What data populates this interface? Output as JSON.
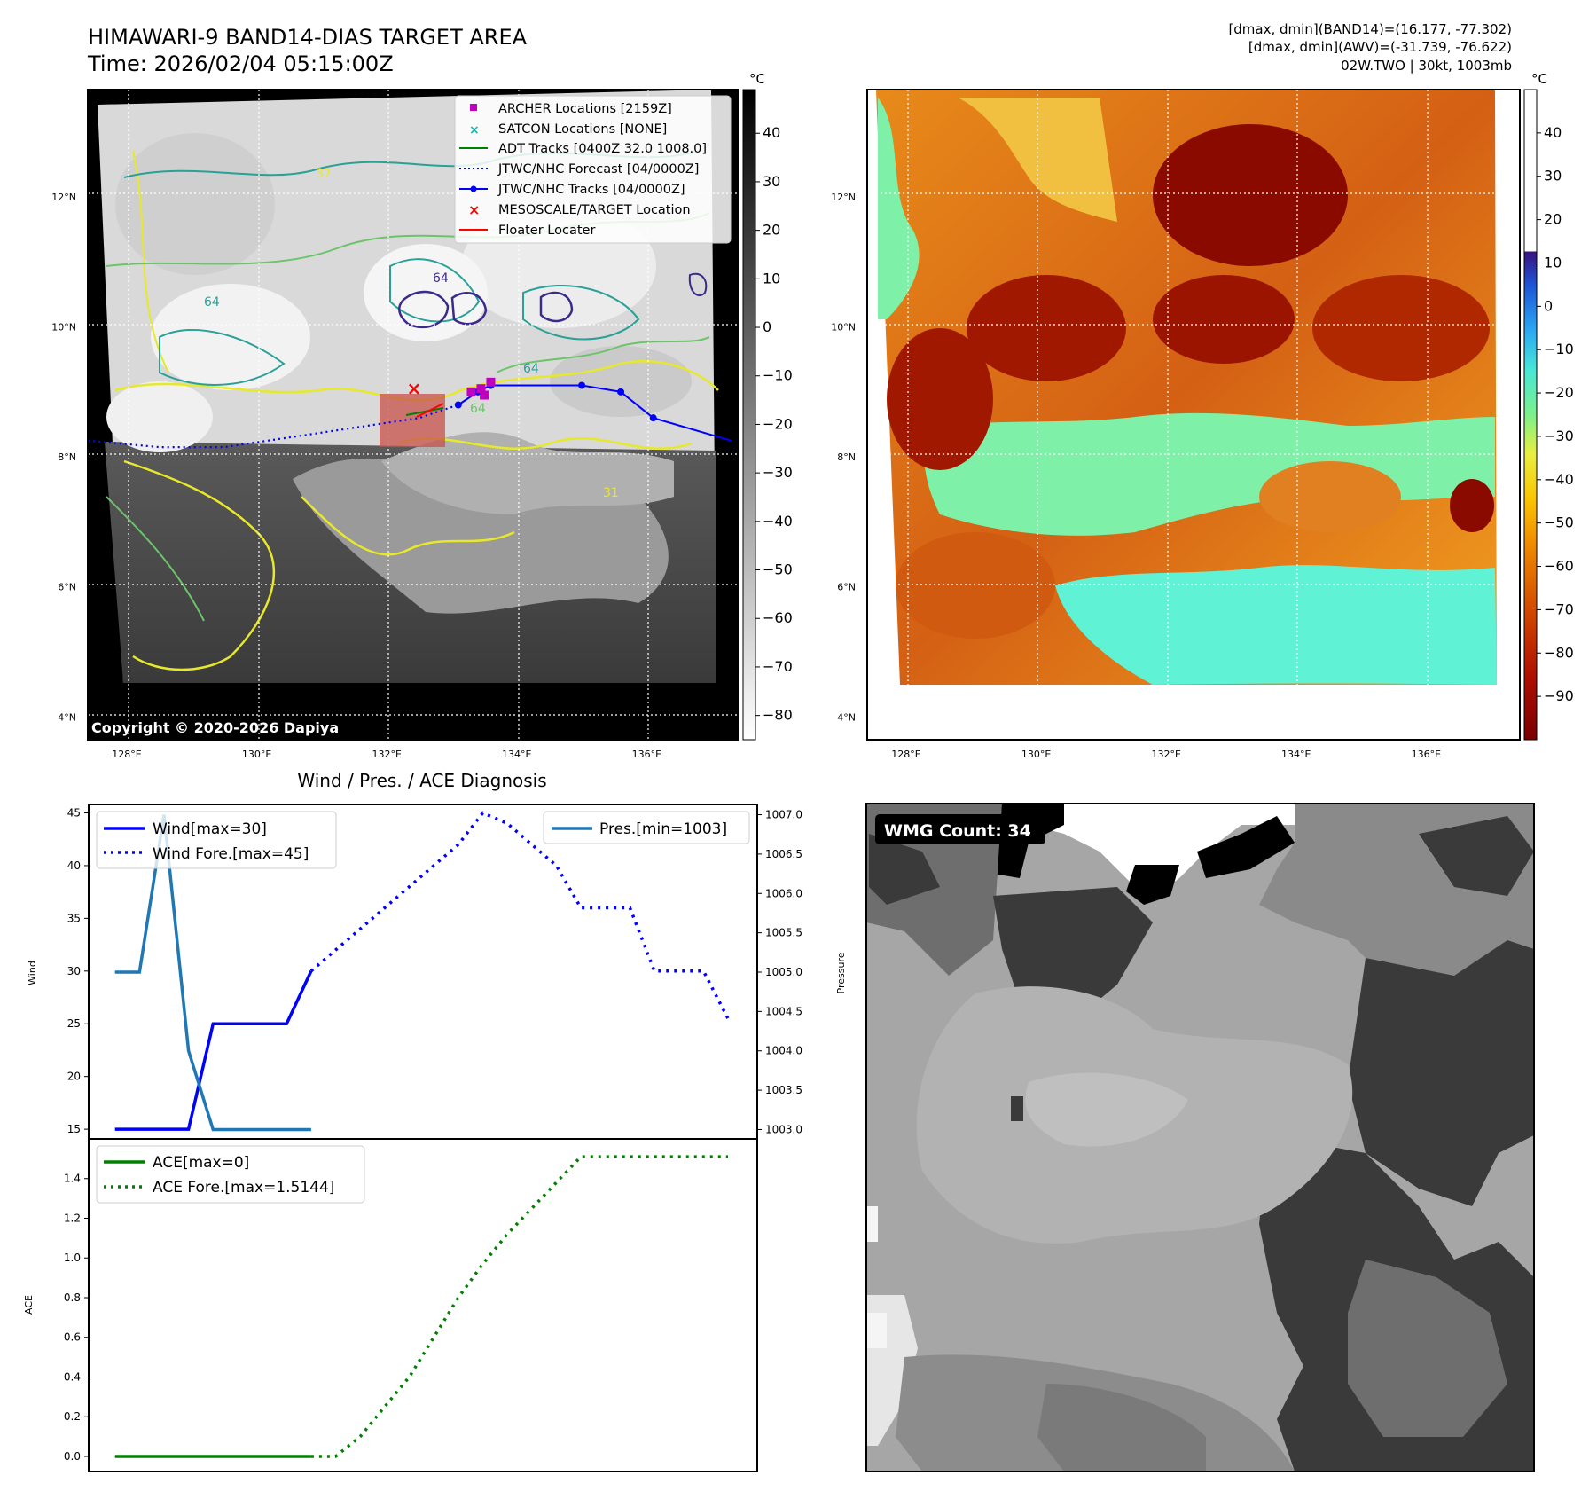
{
  "header": {
    "title_line1": "HIMAWARI-9 BAND14-DIAS TARGET AREA",
    "title_line2": "Time: 2026/02/04 05:15:00Z",
    "info_line1": "[dmax, dmin](BAND14)=(16.177, -77.302)",
    "info_line2": "[dmax, dmin](AWV)=(-31.739, -76.622)",
    "info_line3": "02W.TWO | 30kt, 1003mb"
  },
  "map_common": {
    "lat_labels": [
      "12°N",
      "10°N",
      "8°N",
      "6°N",
      "4°N"
    ],
    "lon_labels": [
      "128°E",
      "130°E",
      "132°E",
      "134°E",
      "136°E"
    ],
    "unit": "°C"
  },
  "ir_map": {
    "copyright": "Copyright © 2020-2026 Dapiya",
    "contour_labels": [
      "64",
      "64",
      "37",
      "64",
      "64",
      "31"
    ],
    "colorbar": {
      "ticks": [
        "40",
        "30",
        "20",
        "10",
        "0",
        "−10",
        "−20",
        "−30",
        "−40",
        "−50",
        "−60",
        "−70",
        "−80"
      ],
      "max": 49,
      "min": -85
    },
    "legend": [
      {
        "label": "ARCHER Locations [2159Z]",
        "color": "#bf00bf",
        "marker": "square"
      },
      {
        "label": "SATCON Locations [NONE]",
        "color": "#00bfbf",
        "marker": "x"
      },
      {
        "label": "ADT Tracks [0400Z 32.0 1008.0]",
        "color": "#008000",
        "marker": "line"
      },
      {
        "label": "JTWC/NHC Forecast [04/0000Z]",
        "color": "#0000ff",
        "marker": "dotted"
      },
      {
        "label": "JTWC/NHC Tracks [04/0000Z]",
        "color": "#0000ff",
        "marker": "line-dot"
      },
      {
        "label": "MESOSCALE/TARGET Location",
        "color": "#ff0000",
        "marker": "x"
      },
      {
        "label": "Floater Locater",
        "color": "#ff0000",
        "marker": "line"
      }
    ],
    "track": {
      "lon": [
        133.1,
        133.4,
        133.6,
        135.0,
        135.6,
        136.1,
        137.3
      ],
      "lat": [
        8.8,
        9.0,
        9.1,
        9.1,
        9.0,
        8.6,
        8.25
      ]
    },
    "forecast_track": {
      "lon": [
        127.4,
        128.5,
        129.5,
        130.5,
        131.5,
        132.5,
        133.1
      ],
      "lat": [
        8.25,
        8.15,
        8.15,
        8.3,
        8.45,
        8.6,
        8.8
      ]
    },
    "archer_points": {
      "lon": [
        133.3,
        133.6,
        133.45,
        133.5
      ],
      "lat": [
        9.0,
        9.15,
        9.05,
        8.95
      ]
    },
    "target": {
      "lon": 132.4,
      "lat": 9.05
    }
  },
  "awv_map": {
    "colorbar": {
      "ticks": [
        "40",
        "30",
        "20",
        "10",
        "0",
        "−10",
        "−20",
        "−30",
        "−40",
        "−50",
        "−60",
        "−70",
        "−80",
        "−90"
      ],
      "max": 50,
      "min": -100
    }
  },
  "diagnosis": {
    "title": "Wind / Pres. / ACE Diagnosis"
  },
  "wmg": {
    "label": "WMG Count: 34"
  },
  "chart_data": [
    {
      "type": "line",
      "title": "Wind / Pres. / ACE Diagnosis",
      "ylabel": "Wind",
      "y2label": "Pressure",
      "ylim": [
        14.0,
        45.8
      ],
      "y2lim": [
        1002.87,
        1007.13
      ],
      "yticks": [
        15,
        20,
        25,
        30,
        35,
        40,
        45
      ],
      "y2ticks": [
        "1003.0",
        "1003.5",
        "1004.0",
        "1004.5",
        "1005.0",
        "1005.5",
        "1006.0",
        "1006.5",
        "1007.0"
      ],
      "xlim": [
        0,
        26
      ],
      "series": [
        {
          "name": "Wind[max=30]",
          "color": "#0000ff",
          "style": "solid",
          "axis": "left",
          "x": [
            1,
            2,
            3,
            4,
            5,
            6,
            7,
            8,
            9
          ],
          "values": [
            15,
            15,
            15,
            15,
            25,
            25,
            25,
            25,
            30
          ]
        },
        {
          "name": "Wind Fore.[max=45]",
          "color": "#0000ff",
          "style": "dotted",
          "axis": "left",
          "x": [
            9,
            10,
            11,
            12,
            13,
            14,
            15,
            16,
            17,
            18,
            19,
            20,
            21,
            22,
            23,
            24,
            25,
            26
          ],
          "values": [
            30,
            32,
            34,
            36,
            38,
            40,
            42,
            45,
            44,
            42,
            40,
            36,
            36,
            36,
            30,
            30,
            30,
            25.5
          ]
        },
        {
          "name": "Pres.[min=1003]",
          "color": "#1f77b4",
          "style": "solid",
          "axis": "right",
          "x": [
            1,
            2,
            3,
            4,
            5,
            6,
            7,
            8,
            9
          ],
          "values": [
            1005.0,
            1005.0,
            1007.0,
            1004.0,
            1003.0,
            1003.0,
            1003.0,
            1003.0,
            1003.0
          ]
        }
      ]
    },
    {
      "type": "line",
      "ylabel": "ACE",
      "ylim": [
        -0.076,
        1.6
      ],
      "yticks": [
        "0.0",
        "0.2",
        "0.4",
        "0.6",
        "0.8",
        "1.0",
        "1.2",
        "1.4"
      ],
      "xlim": [
        0,
        26
      ],
      "series": [
        {
          "name": "ACE[max=0]",
          "color": "#008000",
          "style": "solid",
          "x": [
            1,
            2,
            3,
            4,
            5,
            6,
            7,
            8,
            9
          ],
          "values": [
            0,
            0,
            0,
            0,
            0,
            0,
            0,
            0,
            0
          ]
        },
        {
          "name": "ACE Fore.[max=1.5144]",
          "color": "#008000",
          "style": "dotted",
          "x": [
            9,
            10,
            11,
            12,
            13,
            14,
            15,
            16,
            17,
            18,
            19,
            20,
            21,
            22,
            23,
            24,
            25,
            26
          ],
          "values": [
            0,
            0,
            0.1,
            0.25,
            0.4,
            0.6,
            0.8,
            0.97,
            1.12,
            1.25,
            1.38,
            1.51,
            1.51,
            1.51,
            1.51,
            1.51,
            1.51,
            1.51
          ]
        }
      ]
    }
  ]
}
